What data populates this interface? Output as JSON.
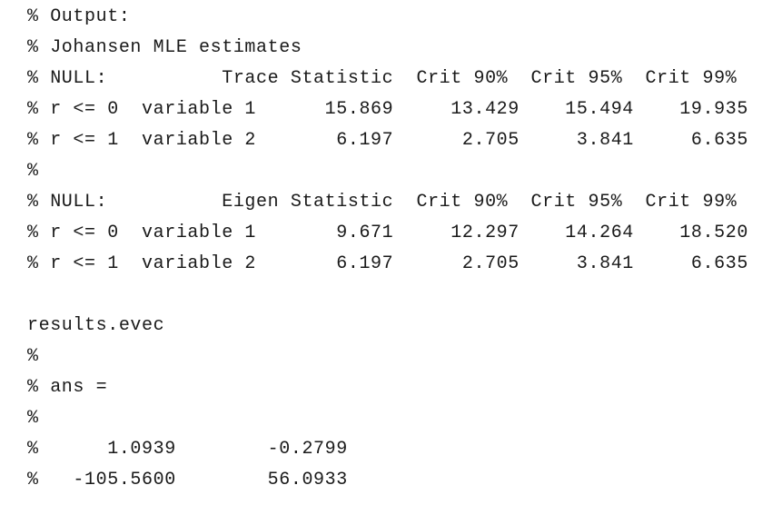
{
  "code": {
    "lines": [
      "% Output:",
      "% Johansen MLE estimates",
      "% NULL:          Trace Statistic  Crit 90%  Crit 95%  Crit 99%",
      "% r <= 0  variable 1      15.869     13.429    15.494    19.935",
      "% r <= 1  variable 2       6.197      2.705     3.841     6.635",
      "%",
      "% NULL:          Eigen Statistic  Crit 90%  Crit 95%  Crit 99%",
      "% r <= 0  variable 1       9.671     12.297    14.264    18.520",
      "% r <= 1  variable 2       6.197      2.705     3.841     6.635",
      "",
      "results.evec",
      "%",
      "% ans =",
      "%",
      "%      1.0939        -0.2799",
      "%   -105.5600        56.0933"
    ]
  }
}
